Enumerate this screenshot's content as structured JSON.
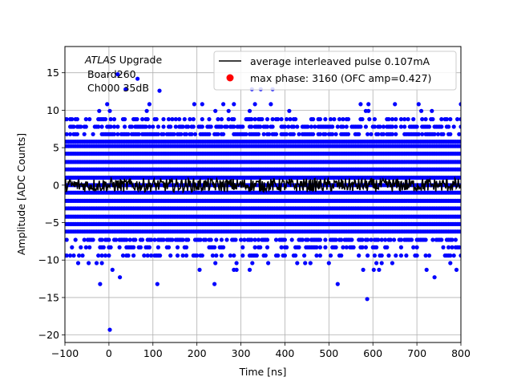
{
  "chart_data": {
    "type": "scatter",
    "title": "",
    "xlabel": "Time [ns]",
    "ylabel": "Amplitude [ADC Counts]",
    "xlim": [
      -100,
      800
    ],
    "ylim": [
      -21,
      18.5
    ],
    "xticks": [
      -100,
      0,
      100,
      200,
      300,
      400,
      500,
      600,
      700,
      800
    ],
    "yticks": [
      -20,
      -15,
      -10,
      -5,
      0,
      5,
      10,
      15
    ],
    "grid": true,
    "legend_position": "top-right",
    "colors": {
      "samples": "#0000ff",
      "pulse": "#000000",
      "max_phase": "#ff0000"
    },
    "annotation": {
      "experiment": "ATLAS",
      "experiment_suffix": " Upgrade",
      "board": "Board260",
      "channel": "Ch000 35dB"
    },
    "series": [
      {
        "name": "average interleaved pulse 0.107mA",
        "kind": "line",
        "description_points": {
          "x_range": [
            -100,
            800
          ],
          "y_center": 0.0,
          "y_spread": 1.0
        }
      },
      {
        "name": "max phase: 3160 (OFC amp=0.427)",
        "kind": "marker",
        "x": [],
        "y": []
      },
      {
        "name": "samples",
        "kind": "scatter",
        "dense_levels": [
          -6.2,
          -5.2,
          -4.2,
          -3.1,
          -2.1,
          -1.0,
          0.0,
          1.0,
          2.1,
          3.1,
          4.2,
          5.2,
          5.8
        ],
        "sparse_levels": [
          -7.3,
          -8.3,
          -9.4,
          6.8,
          7.8,
          8.8
        ],
        "outliers": [
          {
            "x": 2,
            "y": -19.3
          },
          {
            "x": 587,
            "y": -15.2
          },
          {
            "x": 20,
            "y": 14.8
          },
          {
            "x": 38,
            "y": 12.8
          },
          {
            "x": 65,
            "y": 14.2
          },
          {
            "x": 115,
            "y": 12.6
          },
          {
            "x": 325,
            "y": 12.8
          },
          {
            "x": 345,
            "y": 12.8
          },
          {
            "x": 372,
            "y": 12.8
          },
          {
            "x": -20,
            "y": -13.2
          },
          {
            "x": 25,
            "y": -12.3
          },
          {
            "x": 110,
            "y": -13.2
          },
          {
            "x": 240,
            "y": -13.2
          },
          {
            "x": 520,
            "y": -13.2
          },
          {
            "x": 740,
            "y": -12.3
          },
          {
            "x": 790,
            "y": -11.3
          }
        ]
      }
    ]
  }
}
